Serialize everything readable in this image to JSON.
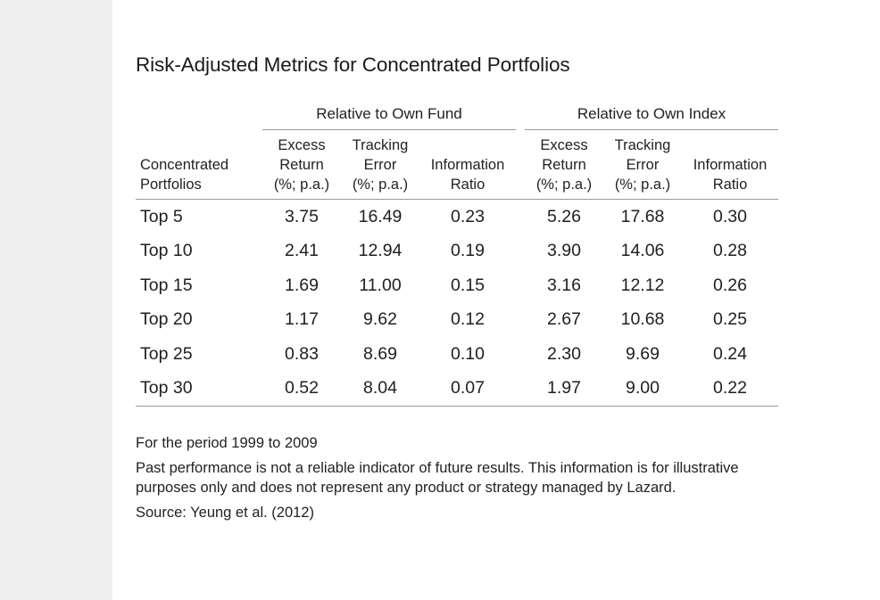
{
  "title": "Risk-Adjusted Metrics for Concentrated Portfolios",
  "groups": [
    "Relative to Own Fund",
    "Relative to Own Index"
  ],
  "columns": {
    "portfolio": [
      "Concentrated",
      "Portfolios"
    ],
    "fund_excess": [
      "Excess",
      "Return",
      "(%; p.a.)"
    ],
    "fund_tracking": [
      "Tracking",
      "Error",
      "(%; p.a.)"
    ],
    "fund_ir": [
      "Information",
      "Ratio"
    ],
    "index_excess": [
      "Excess",
      "Return",
      "(%; p.a.)"
    ],
    "index_tracking": [
      "Tracking",
      "Error",
      "(%; p.a.)"
    ],
    "index_ir": [
      "Information",
      "Ratio"
    ]
  },
  "rows": [
    [
      "Top 5",
      "3.75",
      "16.49",
      "0.23",
      "5.26",
      "17.68",
      "0.30"
    ],
    [
      "Top 10",
      "2.41",
      "12.94",
      "0.19",
      "3.90",
      "14.06",
      "0.28"
    ],
    [
      "Top 15",
      "1.69",
      "11.00",
      "0.15",
      "3.16",
      "12.12",
      "0.26"
    ],
    [
      "Top 20",
      "1.17",
      "9.62",
      "0.12",
      "2.67",
      "10.68",
      "0.25"
    ],
    [
      "Top 25",
      "0.83",
      "8.69",
      "0.10",
      "2.30",
      "9.69",
      "0.24"
    ],
    [
      "Top 30",
      "0.52",
      "8.04",
      "0.07",
      "1.97",
      "9.00",
      "0.22"
    ]
  ],
  "notes": {
    "period": "For the period 1999 to 2009",
    "disclaimer": "Past performance is not a reliable indicator of future results. This information is for illustrative purposes only and does not represent any product or strategy managed by Lazard.",
    "source": "Source: Yeung et al. (2012)"
  }
}
